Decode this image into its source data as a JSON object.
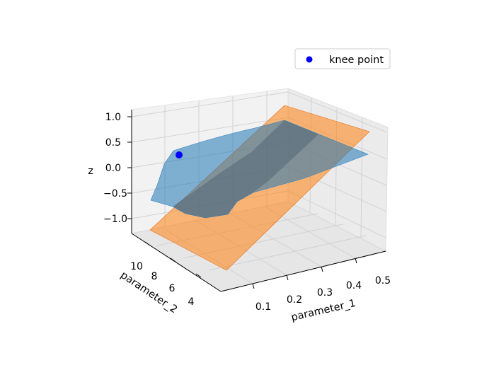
{
  "chart_data": {
    "type": "surface3d",
    "title": "",
    "xlabel": "parameter_1",
    "ylabel": "parameter_2",
    "zlabel": "z",
    "xticks": [
      "0.1",
      "0.2",
      "0.3",
      "0.4",
      "0.5"
    ],
    "yticks": [
      "4",
      "6",
      "8",
      "10"
    ],
    "zticks": [
      "1.0",
      "0.5",
      "0.0",
      "−0.5",
      "−1.0"
    ],
    "xlim": [
      0.05,
      0.55
    ],
    "ylim": [
      3,
      11.5
    ],
    "zlim": [
      -1.45,
      1.1
    ],
    "grid": true,
    "legend": {
      "position": "top-right",
      "entries": [
        {
          "label": "knee point",
          "color": "#0000ff",
          "marker": "circle"
        }
      ]
    },
    "series": [
      {
        "kind": "surface",
        "color": "#1f77b4",
        "opacity": 0.55
      },
      {
        "kind": "plane",
        "color": "#ff7f0e",
        "opacity": 0.55
      },
      {
        "kind": "point",
        "name": "knee point",
        "x": 0.1,
        "y": 10,
        "z": 0.3,
        "color": "#0000ff"
      }
    ]
  }
}
